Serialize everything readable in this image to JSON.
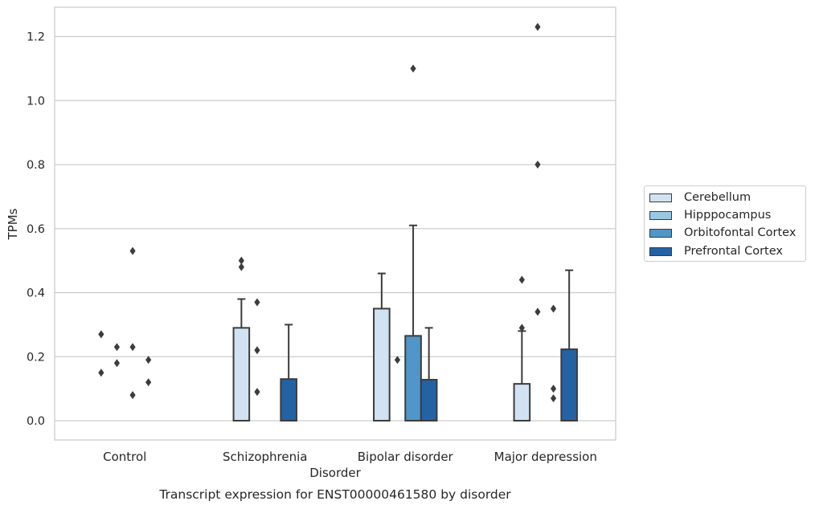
{
  "chart_data": {
    "type": "bar",
    "title": "",
    "caption": "Transcript expression for ENST00000461580 by disorder",
    "xlabel": "Disorder",
    "ylabel": "TPMs",
    "ylim": [
      -0.06,
      1.29
    ],
    "yticks": [
      "0.0",
      "0.2",
      "0.4",
      "0.6",
      "0.8",
      "1.0",
      "1.2"
    ],
    "grid": true,
    "legend_position": "right",
    "categories": [
      "Control",
      "Schizophrenia",
      "Bipolar disorder",
      "Major depression"
    ],
    "series": [
      {
        "name": "Cerebellum",
        "color": "#d1e2f2",
        "values": [
          0.0,
          0.29,
          0.35,
          0.115
        ],
        "errors": [
          null,
          0.38,
          0.46,
          0.28
        ],
        "outliers": [
          [
            0.27,
            0.15
          ],
          [
            0.48,
            0.5
          ],
          [],
          [
            0.44,
            0.29
          ]
        ]
      },
      {
        "name": "Hipppocampus",
        "color": "#9ac8e0",
        "values": [
          0.0,
          0.0,
          0.0,
          0.0
        ],
        "errors": [
          null,
          null,
          null,
          null
        ],
        "outliers": [
          [
            0.23,
            0.18
          ],
          [
            0.22,
            0.09,
            0.37
          ],
          [
            0.19
          ],
          [
            0.8,
            1.23,
            0.34
          ]
        ]
      },
      {
        "name": "Orbitofontal Cortex",
        "color": "#5096c8",
        "values": [
          0.0,
          0.0,
          0.265,
          0.0
        ],
        "errors": [
          null,
          null,
          0.61,
          null
        ],
        "outliers": [
          [
            0.53,
            0.23,
            0.08
          ],
          [],
          [
            1.1
          ],
          [
            0.35,
            0.1,
            0.07
          ]
        ]
      },
      {
        "name": "Prefrontal Cortex",
        "color": "#2462a3",
        "values": [
          0.0,
          0.13,
          0.128,
          0.223
        ],
        "errors": [
          null,
          0.3,
          0.29,
          0.47
        ],
        "outliers": [
          [
            0.19,
            0.12
          ],
          [],
          [],
          []
        ]
      }
    ]
  }
}
